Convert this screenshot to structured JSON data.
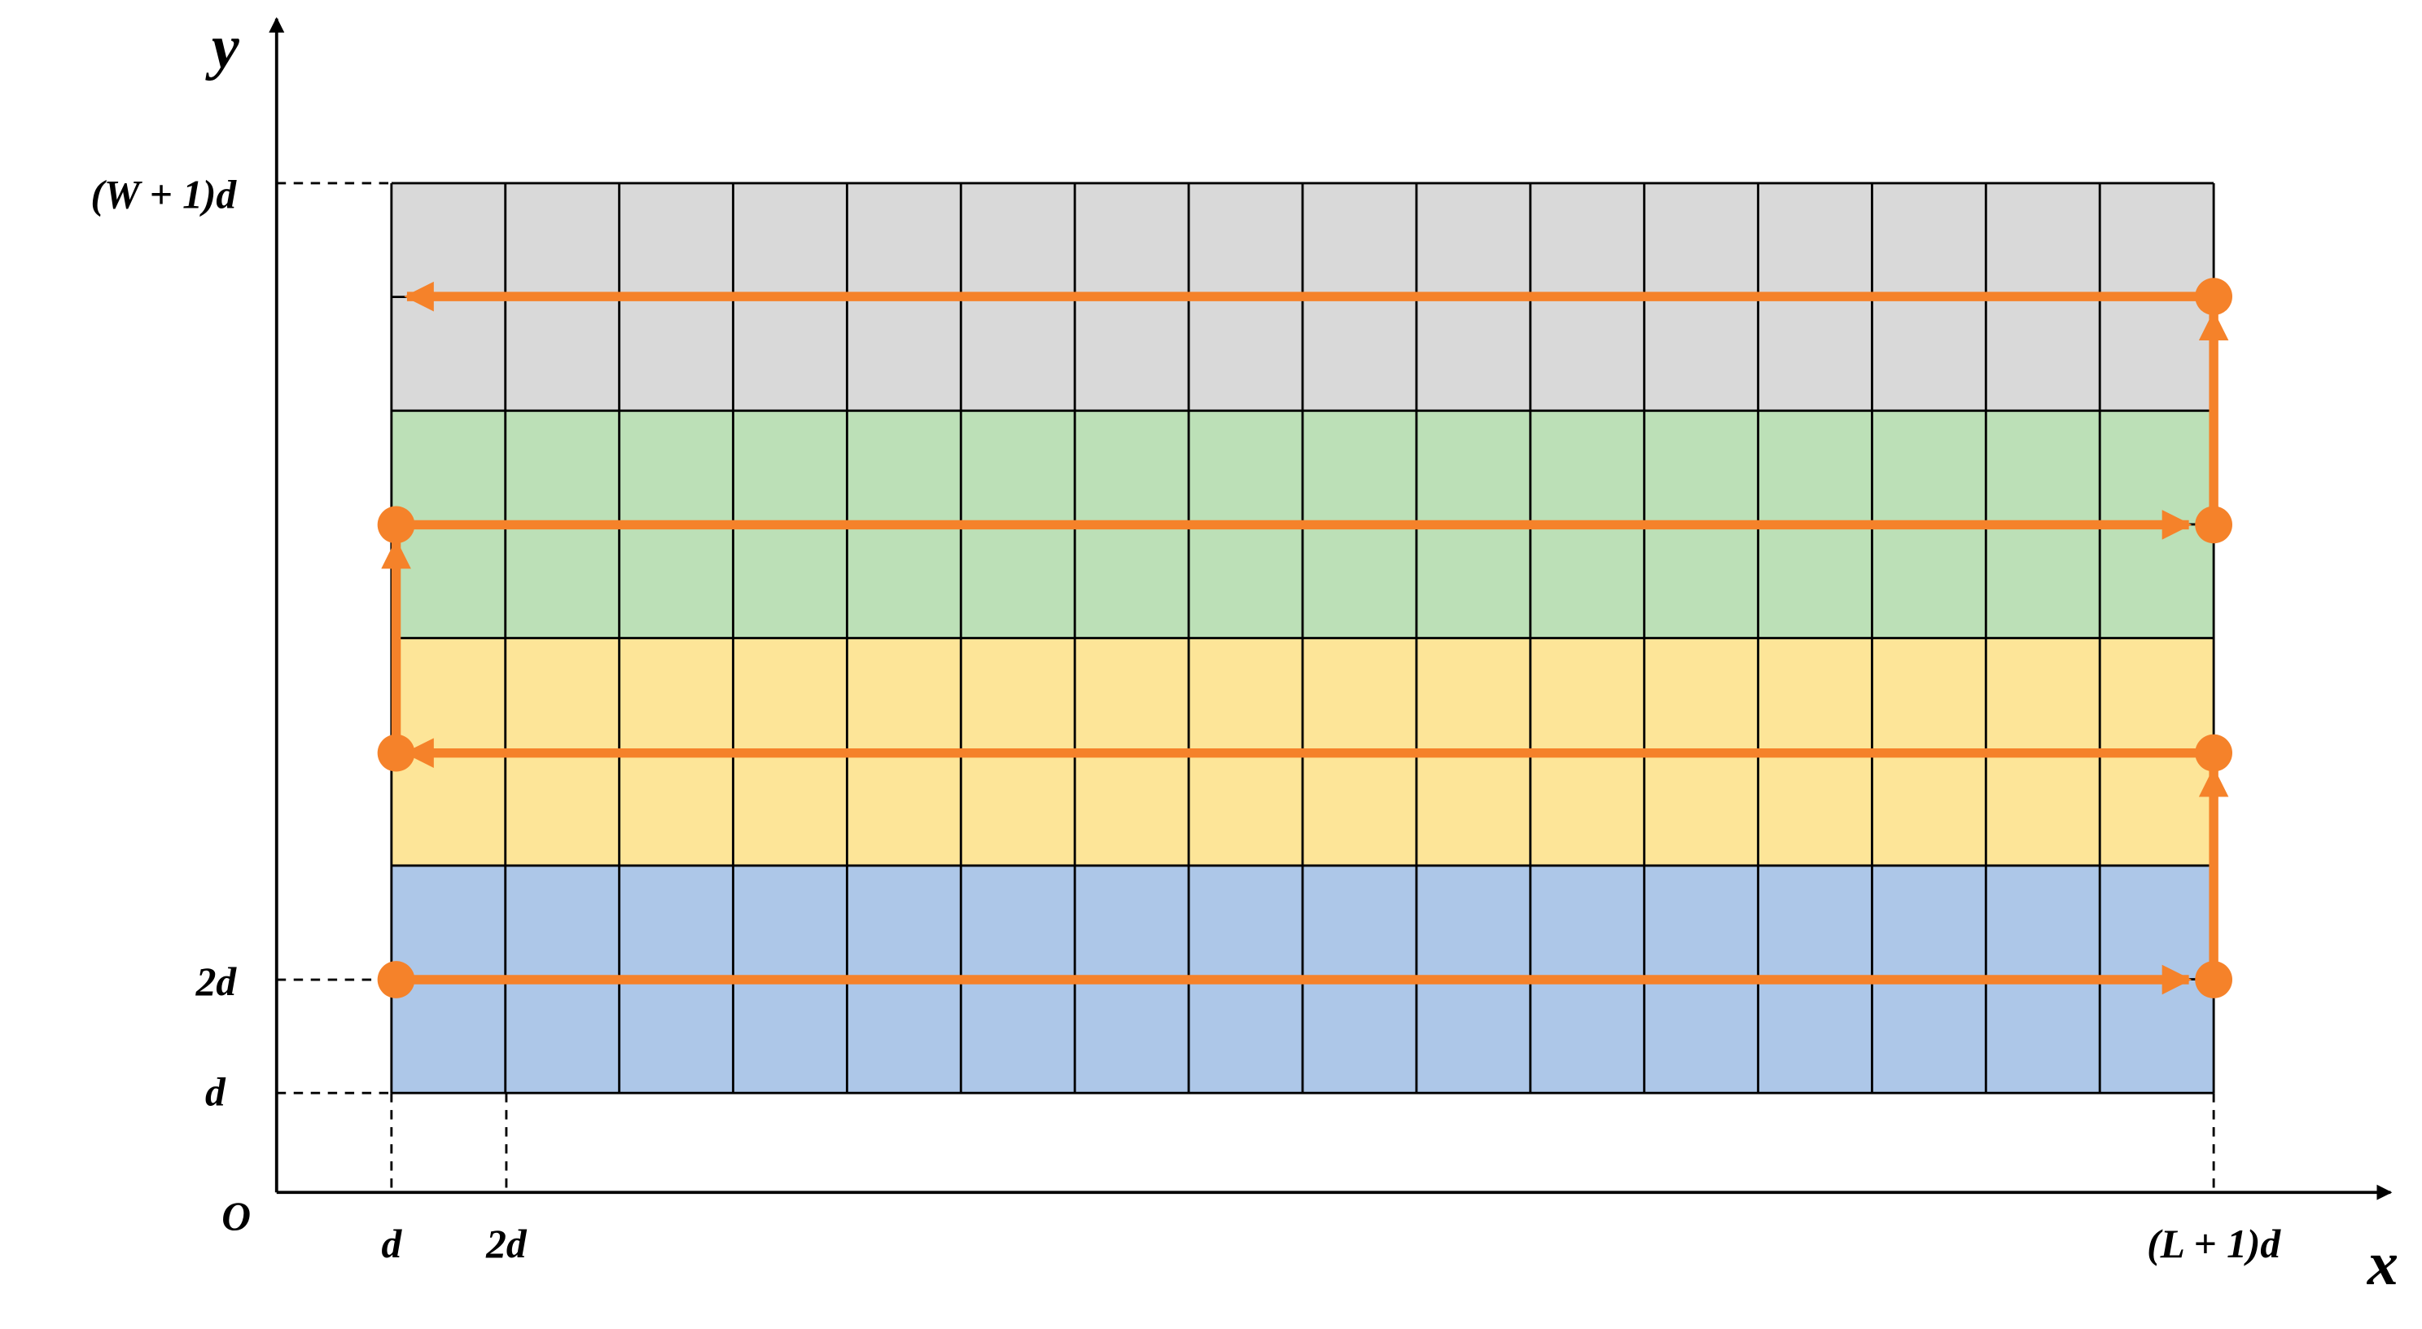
{
  "axes": {
    "y_label": "y",
    "x_label": "x",
    "origin": "O"
  },
  "y_ticks": [
    "(W + 1)d",
    "2d",
    "d"
  ],
  "x_ticks": [
    "d",
    "2d",
    "(L + 1)d"
  ]
}
